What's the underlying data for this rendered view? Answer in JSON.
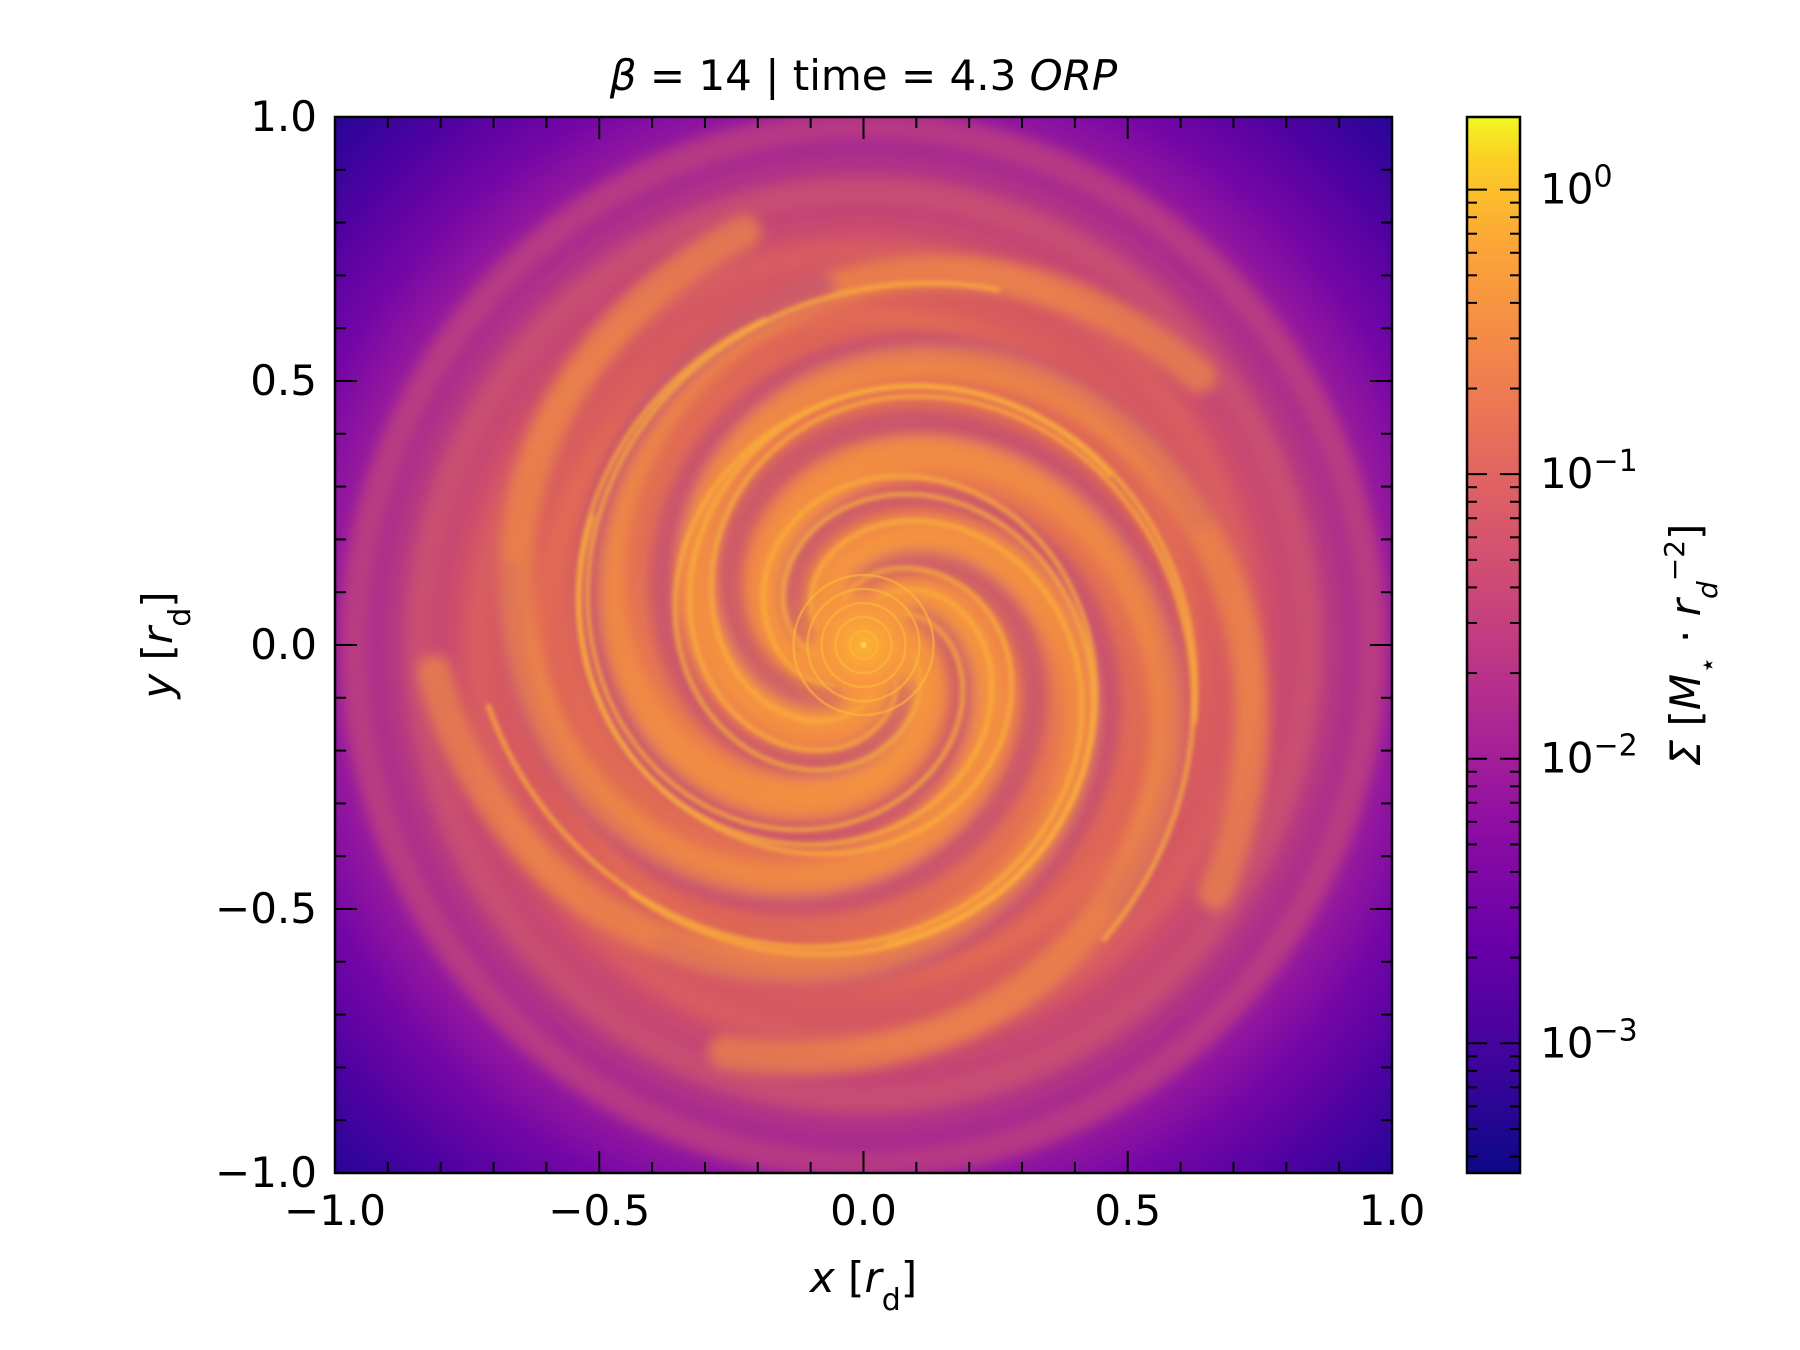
{
  "chart_data": {
    "type": "heatmap",
    "title": {
      "parts": [
        {
          "text": "β",
          "italic": true
        },
        {
          "text": " = 14 | time = 4.3 ",
          "italic": false
        },
        {
          "text": "ORP",
          "italic": true
        }
      ]
    },
    "xlabel": {
      "main": "x",
      "unit": "r",
      "unit_sub": "d"
    },
    "ylabel": {
      "main": "y",
      "unit": "r",
      "unit_sub": "d"
    },
    "xlim": [
      -1.0,
      1.0
    ],
    "ylim": [
      -1.0,
      1.0
    ],
    "xticks": [
      -1.0,
      -0.5,
      0.0,
      0.5,
      1.0
    ],
    "yticks": [
      -1.0,
      -0.5,
      0.0,
      0.5,
      1.0
    ],
    "xtick_labels": [
      "−1.0",
      "−0.5",
      "0.0",
      "0.5",
      "1.0"
    ],
    "ytick_labels": [
      "−1.0",
      "−0.5",
      "0.0",
      "0.5",
      "1.0"
    ],
    "minor_tick_step": 0.1,
    "colormap": "plasma",
    "colorbar": {
      "scale": "log",
      "range": [
        0.00035,
        1.8
      ],
      "ticks": [
        0.001,
        0.01,
        0.1,
        1
      ],
      "tick_labels": [
        {
          "base": "10",
          "exp": "−3"
        },
        {
          "base": "10",
          "exp": "−2"
        },
        {
          "base": "10",
          "exp": "−1"
        },
        {
          "base": "10",
          "exp": "0"
        }
      ],
      "label": {
        "symbol": "Σ",
        "body": "M",
        "body_sub": "⋆",
        "unit": "r",
        "unit_sub": "d",
        "unit_exp": "−2"
      }
    },
    "field_description": {
      "center_value": 0.5,
      "outer_value": 0.0005,
      "spiral_arms": 5
    }
  }
}
